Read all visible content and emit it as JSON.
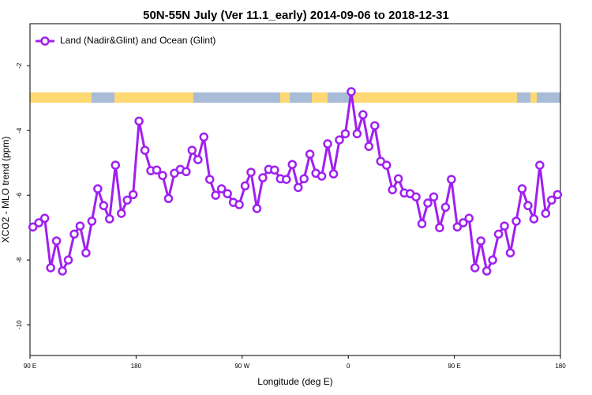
{
  "chart_data": {
    "type": "line",
    "title": "50N-55N July (Ver 11.1_early)   2014-09-06 to 2018-12-31",
    "x_label": "Longitude (deg E)",
    "y_label": "XCO2 - MLO trend (ppm)",
    "legend": "top-left",
    "xlim": [
      90,
      540
    ],
    "xticks": [
      {
        "value": 90,
        "label": "90 E"
      },
      180,
      {
        "value": 270,
        "label": "90 W"
      },
      {
        "value": 360,
        "label": "0"
      },
      {
        "value": 450,
        "label": "90 E"
      },
      {
        "value": 540,
        "label": "180"
      }
    ],
    "ylim": [
      -10.95,
      -0.7
    ],
    "yticks": [
      -10,
      -8,
      -6,
      -4,
      -2
    ],
    "x": [
      92.5,
      97.5,
      102.5,
      107.5,
      112.5,
      117.5,
      122.5,
      127.5,
      132.5,
      137.5,
      142.5,
      147.5,
      152.5,
      157.5,
      162.5,
      167.5,
      172.5,
      177.5,
      182.5,
      187.5,
      192.5,
      197.5,
      202.5,
      207.5,
      212.5,
      217.5,
      222.5,
      227.5,
      232.5,
      237.5,
      242.5,
      247.5,
      252.5,
      257.5,
      262.5,
      267.5,
      272.5,
      277.5,
      282.5,
      287.5,
      292.5,
      297.5,
      302.5,
      307.5,
      312.5,
      317.5,
      322.5,
      327.5,
      332.5,
      337.5,
      342.5,
      347.5,
      352.5,
      357.5,
      362.5,
      367.5,
      372.5,
      377.5,
      382.5,
      387.5,
      392.5,
      397.5,
      402.5,
      407.5,
      412.5,
      417.5,
      422.5,
      427.5,
      432.5,
      437.5,
      442.5,
      447.5,
      452.5,
      457.5,
      462.5,
      467.5,
      472.5,
      477.5,
      482.5,
      487.5,
      492.5,
      497.5,
      502.5,
      507.5,
      512.5,
      517.5,
      522.5,
      527.5,
      532.5,
      537.5
    ],
    "series": [
      {
        "name": "Land (Nadir&Glint) and Ocean (Glint)",
        "color": "#a020f0",
        "values": [
          -6.98,
          -6.85,
          -6.71,
          -8.24,
          -7.41,
          -8.34,
          -8.0,
          -7.2,
          -6.95,
          -7.78,
          -6.8,
          -5.8,
          -6.32,
          -6.73,
          -5.07,
          -6.56,
          -6.15,
          -5.98,
          -3.71,
          -4.61,
          -5.24,
          -5.22,
          -5.39,
          -6.1,
          -5.32,
          -5.2,
          -5.27,
          -4.61,
          -4.9,
          -4.2,
          -5.51,
          -6.0,
          -5.8,
          -5.95,
          -6.22,
          -6.29,
          -5.71,
          -5.29,
          -6.41,
          -5.46,
          -5.2,
          -5.22,
          -5.49,
          -5.51,
          -5.05,
          -5.76,
          -5.49,
          -4.73,
          -5.32,
          -5.41,
          -4.41,
          -5.34,
          -4.29,
          -4.1,
          -2.8,
          -4.1,
          -3.51,
          -4.49,
          -3.85,
          -4.95,
          -5.07,
          -5.83,
          -5.49,
          -5.93,
          -5.95,
          -6.05,
          -6.88,
          -6.24,
          -6.05,
          -7.0,
          -6.37,
          -5.51,
          -6.98,
          -6.85,
          -6.71,
          -8.24,
          -7.41,
          -8.34,
          -8.0,
          -7.2,
          -6.95,
          -7.78,
          -6.8,
          -5.8,
          -6.32,
          -6.73,
          -5.07,
          -6.56,
          -6.15,
          -5.98
        ]
      }
    ]
  }
}
